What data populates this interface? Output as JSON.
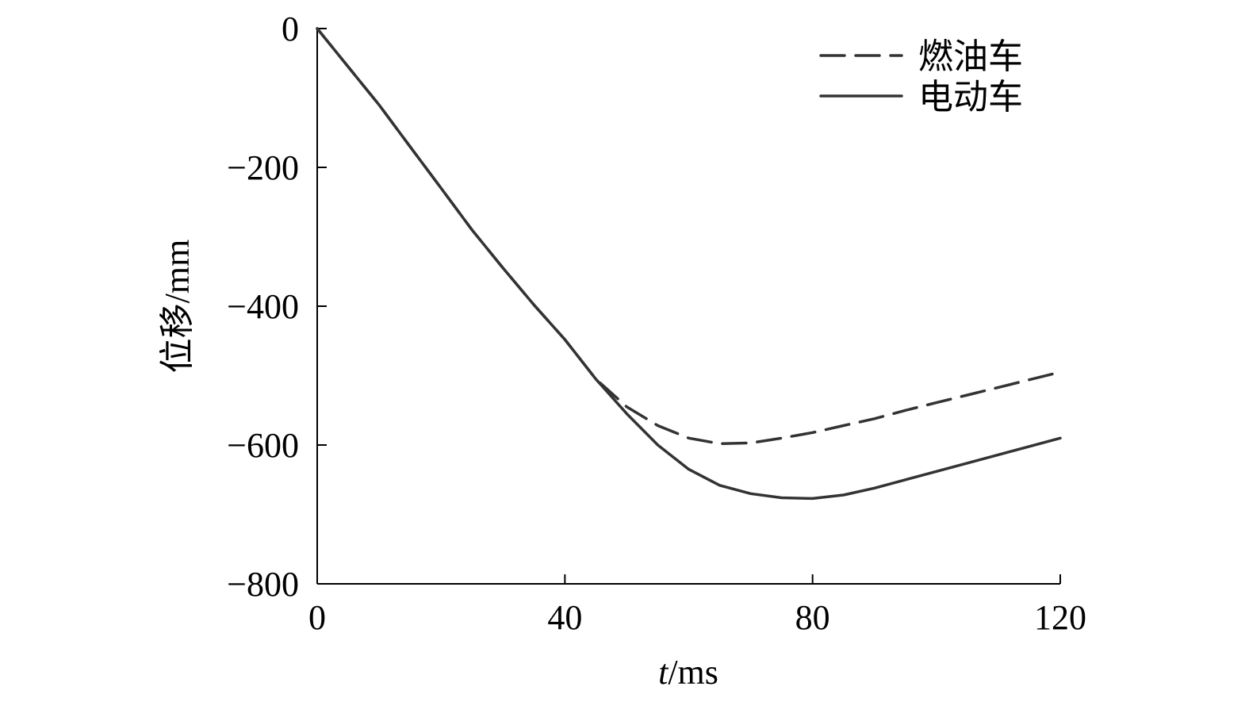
{
  "chart_data": {
    "type": "line",
    "xlabel_italic": "t",
    "xlabel_rest": "/ms",
    "ylabel": "位移/mm",
    "xlim": [
      0,
      120
    ],
    "ylim": [
      -800,
      0
    ],
    "xticks": [
      0,
      40,
      80,
      120
    ],
    "yticks": [
      0,
      -200,
      -400,
      -600,
      -800
    ],
    "xtick_labels": [
      "0",
      "40",
      "80",
      "120"
    ],
    "ytick_labels": [
      "0",
      "−200",
      "−400",
      "−600",
      "−800"
    ],
    "legend_position": "top-right",
    "grid": false,
    "series": [
      {
        "name": "燃油车",
        "style": "dashed",
        "color": "#333333",
        "x": [
          0,
          5,
          10,
          15,
          20,
          25,
          30,
          35,
          40,
          45,
          50,
          55,
          60,
          65,
          70,
          75,
          80,
          85,
          90,
          95,
          100,
          105,
          110,
          115,
          120
        ],
        "y": [
          0,
          -55,
          -110,
          -170,
          -230,
          -290,
          -345,
          -398,
          -448,
          -505,
          -545,
          -572,
          -590,
          -598,
          -597,
          -590,
          -582,
          -572,
          -562,
          -550,
          -539,
          -528,
          -517,
          -506,
          -495
        ]
      },
      {
        "name": "电动车",
        "style": "solid",
        "color": "#333333",
        "x": [
          0,
          5,
          10,
          15,
          20,
          25,
          30,
          35,
          40,
          45,
          50,
          55,
          60,
          65,
          70,
          75,
          80,
          85,
          90,
          95,
          100,
          105,
          110,
          115,
          120
        ],
        "y": [
          0,
          -55,
          -110,
          -170,
          -230,
          -290,
          -345,
          -398,
          -448,
          -505,
          -555,
          -600,
          -635,
          -658,
          -670,
          -676,
          -677,
          -672,
          -662,
          -650,
          -638,
          -626,
          -614,
          -602,
          -590
        ]
      }
    ]
  }
}
